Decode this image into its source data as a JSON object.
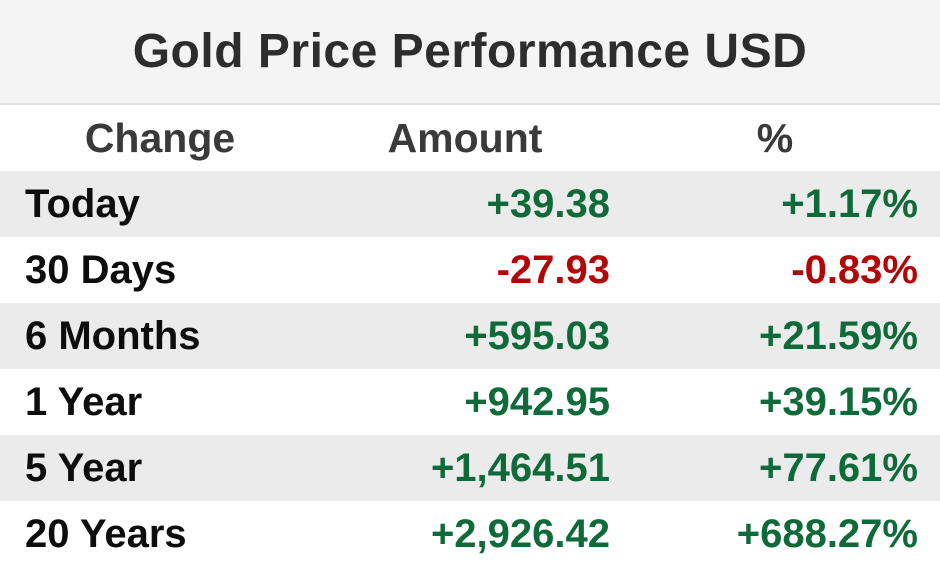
{
  "title": "Gold Price Performance USD",
  "colors": {
    "positive": "#0e6a38",
    "negative": "#b20505",
    "stripe": "#ebebeb",
    "title_background": "#f4f4f4",
    "label_text": "#0d0d0d"
  },
  "table": {
    "columns": [
      {
        "key": "change",
        "label": "Change"
      },
      {
        "key": "amount",
        "label": "Amount"
      },
      {
        "key": "percent",
        "label": "%"
      }
    ],
    "rows": [
      {
        "change": "Today",
        "amount": "+39.38",
        "percent": "+1.17%",
        "direction": "up"
      },
      {
        "change": "30 Days",
        "amount": "-27.93",
        "percent": "-0.83%",
        "direction": "down"
      },
      {
        "change": "6 Months",
        "amount": "+595.03",
        "percent": "+21.59%",
        "direction": "up"
      },
      {
        "change": "1 Year",
        "amount": "+942.95",
        "percent": "+39.15%",
        "direction": "up"
      },
      {
        "change": "5 Year",
        "amount": "+1,464.51",
        "percent": "+77.61%",
        "direction": "up"
      },
      {
        "change": "20 Years",
        "amount": "+2,926.42",
        "percent": "+688.27%",
        "direction": "up"
      }
    ]
  },
  "chart_data": {
    "type": "table",
    "title": "Gold Price Performance USD",
    "columns": [
      "Change",
      "Amount",
      "%"
    ],
    "rows": [
      [
        "Today",
        39.38,
        1.17
      ],
      [
        "30 Days",
        -27.93,
        -0.83
      ],
      [
        "6 Months",
        595.03,
        21.59
      ],
      [
        "1 Year",
        942.95,
        39.15
      ],
      [
        "5 Year",
        1464.51,
        77.61
      ],
      [
        "20 Years",
        2926.42,
        688.27
      ]
    ]
  }
}
